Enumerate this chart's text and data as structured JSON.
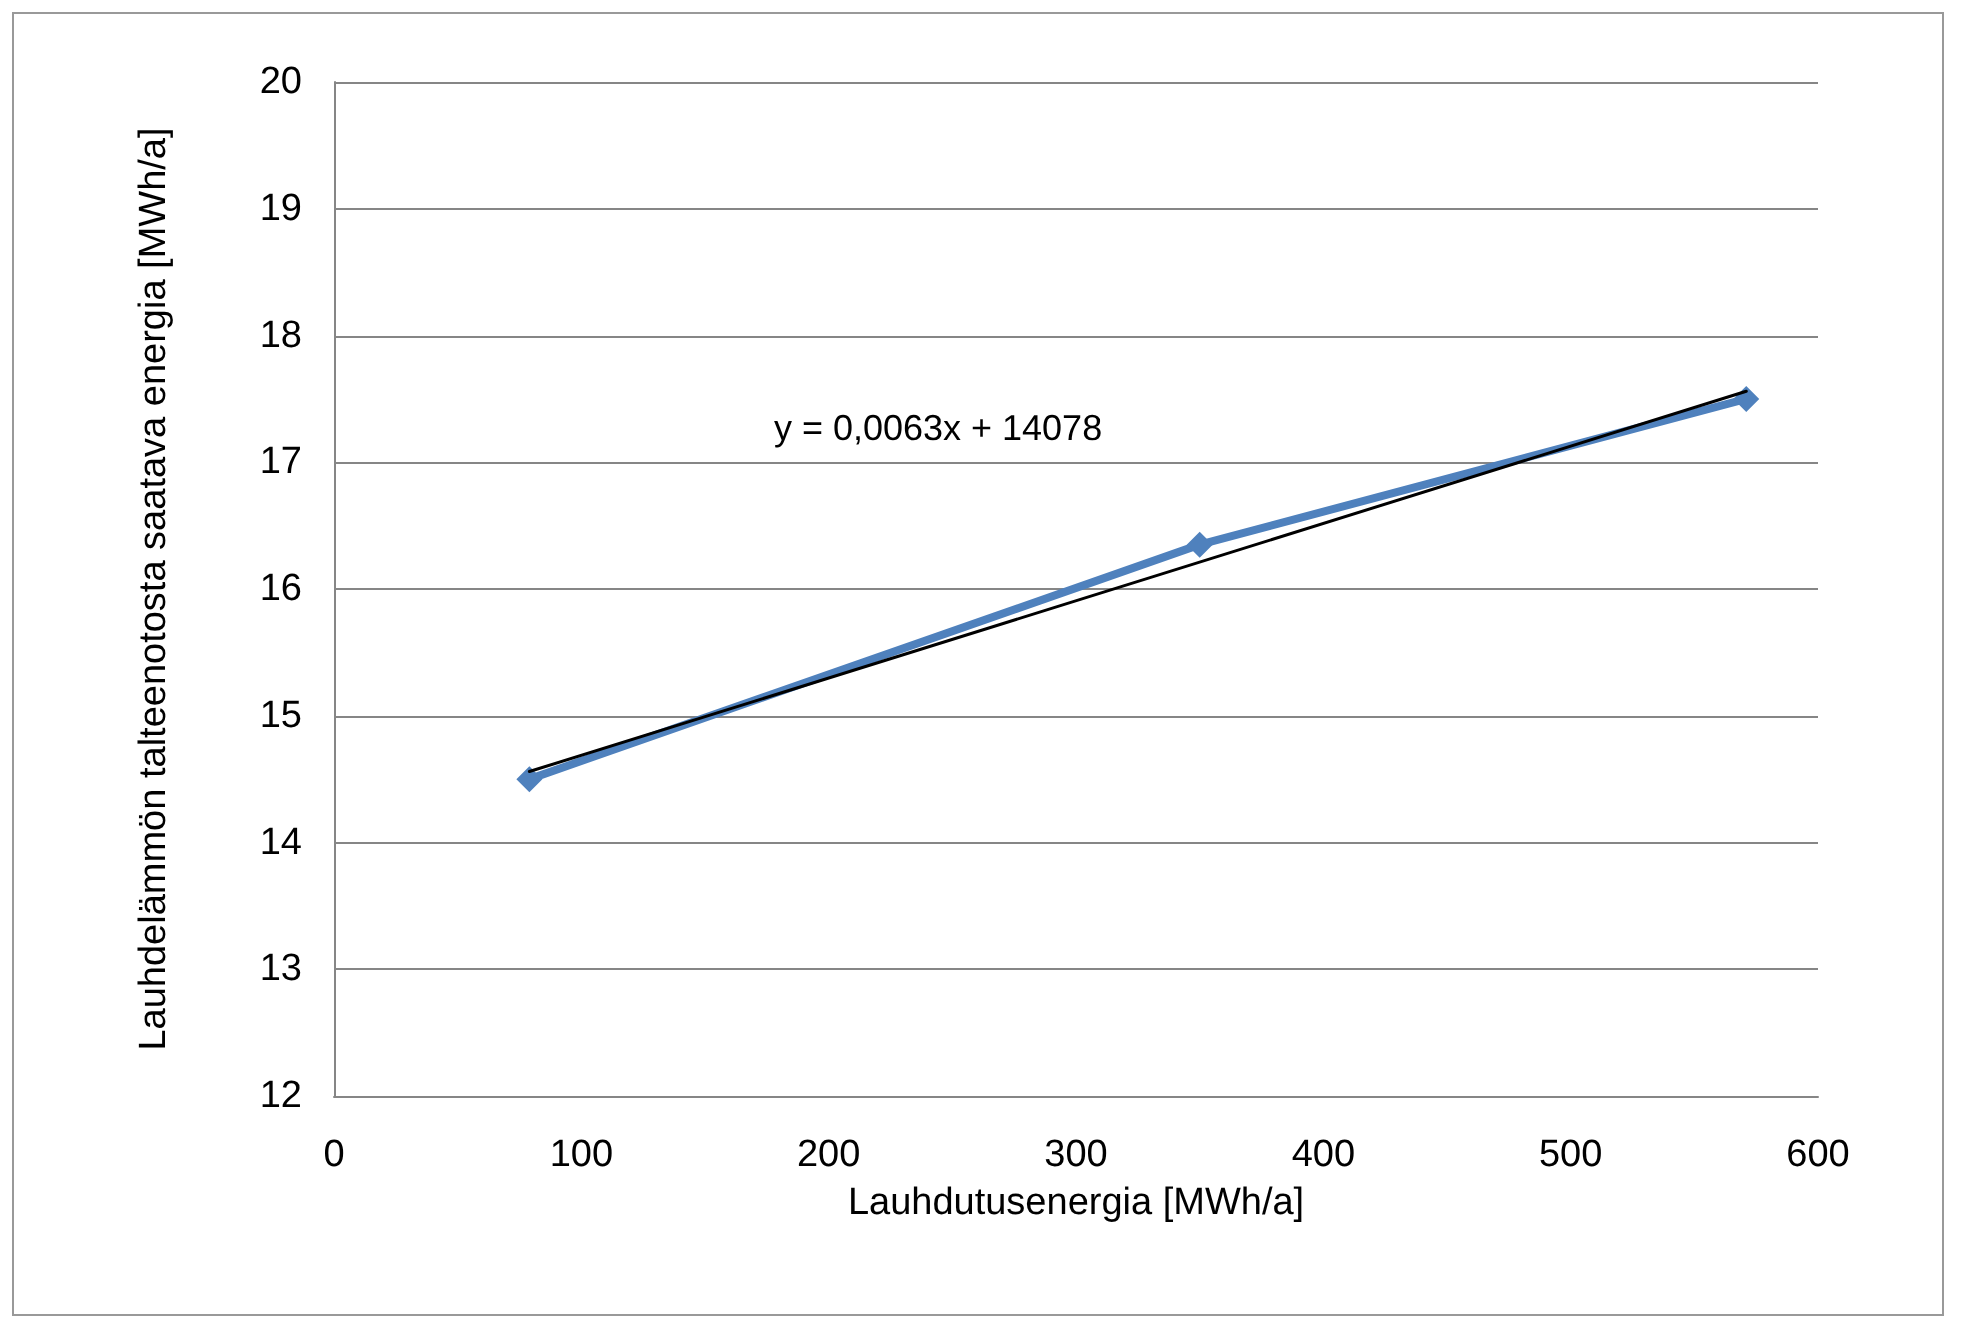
{
  "chart_data": {
    "type": "line",
    "xlabel": "Lauhdutusenergia [MWh/a]",
    "ylabel": "Lauhdelämmön talteenotosta saatava energia [MWh/a]",
    "x": [
      79,
      350,
      571
    ],
    "series": [
      {
        "color": "#4f81bd",
        "values": [
          14.5,
          16.35,
          17.5
        ],
        "marker": "diamond"
      },
      {
        "color": "#000000",
        "x": [
          79,
          571
        ],
        "values": [
          14.56,
          17.56
        ],
        "marker": "none"
      }
    ],
    "xlim": [
      0,
      600
    ],
    "xticks": [
      0,
      100,
      200,
      300,
      400,
      500,
      600
    ],
    "ylim": [
      12,
      20
    ],
    "yticks": [
      12,
      13,
      14,
      15,
      16,
      17,
      18,
      19,
      20
    ],
    "grid": "y",
    "annotations": [
      "y = 0,0063x + 14078"
    ]
  }
}
